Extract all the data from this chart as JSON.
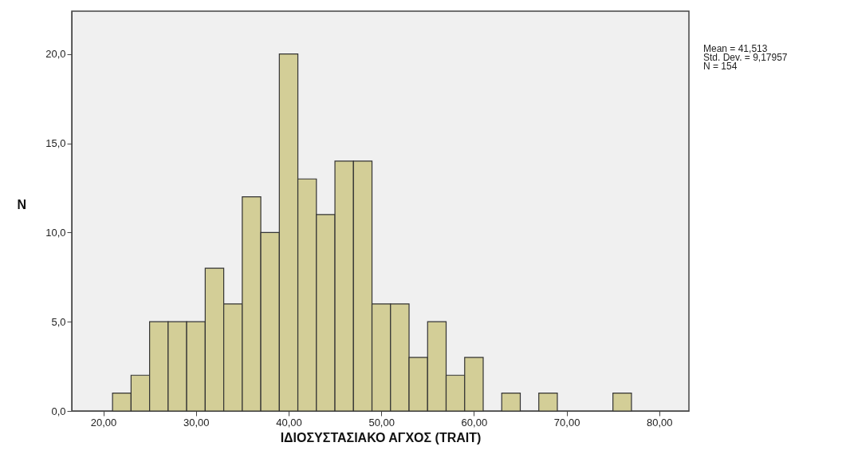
{
  "chart_data": {
    "type": "histogram",
    "xlabel": "ΙΔΙΟΣΥΣΤΑΣΙΑΚΟ ΑΓΧΟΣ (TRAIT)",
    "ylabel": "N",
    "annotations": [
      "Mean = 41,513",
      "Std. Dev. = 9,17957",
      "N = 154"
    ],
    "bins": [
      21,
      23,
      25,
      27,
      29,
      31,
      33,
      35,
      37,
      39,
      41,
      43,
      45,
      47,
      49,
      51,
      53,
      55,
      57,
      59,
      61,
      63,
      65,
      67,
      69,
      71,
      73,
      75,
      77
    ],
    "values": [
      1,
      2,
      5,
      5,
      5,
      8,
      6,
      12,
      10,
      20,
      13,
      11,
      14,
      14,
      6,
      6,
      3,
      5,
      2,
      3,
      0,
      1,
      0,
      1,
      0,
      0,
      0,
      1
    ],
    "color": "#d3ce97",
    "xlim": [
      16.6,
      83.2
    ],
    "xticks": [
      {
        "value": 20,
        "label": "20,00"
      },
      {
        "value": 30,
        "label": "30,00"
      },
      {
        "value": 40,
        "label": "40,00"
      },
      {
        "value": 50,
        "label": "50,00"
      },
      {
        "value": 60,
        "label": "60,00"
      },
      {
        "value": 70,
        "label": "70,00"
      },
      {
        "value": 80,
        "label": "80,00"
      }
    ],
    "ylim": [
      0,
      22.4
    ],
    "yticks": [
      {
        "value": 0,
        "label": "0,0"
      },
      {
        "value": 5,
        "label": "5,0"
      },
      {
        "value": 10,
        "label": "10,0"
      },
      {
        "value": 15,
        "label": "15,0"
      },
      {
        "value": 20,
        "label": "20,0"
      }
    ],
    "grid": false
  }
}
